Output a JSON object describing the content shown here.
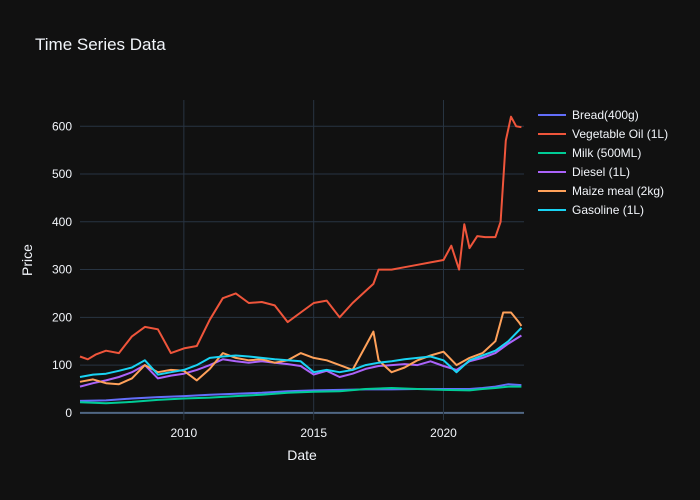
{
  "chart_data": {
    "type": "line",
    "title": "Time Series Data",
    "xlabel": "Date",
    "ylabel": "Price",
    "xlim": [
      2006.0,
      2023.1
    ],
    "ylim": [
      -15,
      655
    ],
    "x_ticks": [
      2010,
      2015,
      2020
    ],
    "x_tick_labels": [
      "2010",
      "2015",
      "2020"
    ],
    "y_ticks": [
      0,
      100,
      200,
      300,
      400,
      500,
      600
    ],
    "y_tick_labels": [
      "0",
      "100",
      "200",
      "300",
      "400",
      "500",
      "600"
    ],
    "grid": true,
    "legend_position": "top-right",
    "background": "#111111",
    "series": [
      {
        "name": "Bread(400g)",
        "color": "#636efa",
        "x": [
          2006.0,
          2007.0,
          2008.0,
          2009.0,
          2010.0,
          2011.0,
          2012.0,
          2013.0,
          2014.0,
          2015.0,
          2016.0,
          2017.0,
          2018.0,
          2019.0,
          2020.0,
          2021.0,
          2021.5,
          2022.0,
          2022.5,
          2023.0
        ],
        "values": [
          25,
          26,
          30,
          33,
          35,
          38,
          40,
          42,
          45,
          47,
          48,
          49,
          49,
          50,
          50,
          50,
          52,
          55,
          60,
          58
        ]
      },
      {
        "name": "Vegetable Oil (1L)",
        "color": "#ef553b",
        "x": [
          2006.0,
          2006.3,
          2006.6,
          2007.0,
          2007.5,
          2008.0,
          2008.5,
          2009.0,
          2009.5,
          2010.0,
          2010.5,
          2011.0,
          2011.5,
          2012.0,
          2012.5,
          2013.0,
          2013.5,
          2014.0,
          2014.5,
          2015.0,
          2015.5,
          2016.0,
          2016.5,
          2017.0,
          2017.3,
          2017.5,
          2018.0,
          2018.5,
          2019.0,
          2019.5,
          2020.0,
          2020.3,
          2020.6,
          2020.8,
          2021.0,
          2021.3,
          2021.6,
          2022.0,
          2022.2,
          2022.4,
          2022.6,
          2022.8,
          2023.0
        ],
        "values": [
          118,
          112,
          122,
          130,
          125,
          160,
          180,
          175,
          125,
          135,
          140,
          195,
          240,
          250,
          230,
          232,
          225,
          190,
          210,
          230,
          235,
          200,
          230,
          255,
          270,
          300,
          300,
          305,
          310,
          315,
          320,
          350,
          300,
          395,
          345,
          370,
          368,
          368,
          400,
          570,
          620,
          600,
          598
        ]
      },
      {
        "name": "Milk (500ML)",
        "color": "#00cc96",
        "x": [
          2006.0,
          2007.0,
          2008.0,
          2009.0,
          2010.0,
          2011.0,
          2012.0,
          2013.0,
          2014.0,
          2015.0,
          2016.0,
          2017.0,
          2018.0,
          2019.0,
          2020.0,
          2021.0,
          2021.5,
          2022.0,
          2022.5,
          2023.0
        ],
        "values": [
          22,
          20,
          23,
          27,
          30,
          32,
          35,
          38,
          42,
          44,
          45,
          50,
          52,
          50,
          48,
          47,
          50,
          52,
          55,
          55
        ]
      },
      {
        "name": "Diesel (1L)",
        "color": "#ab63fa",
        "x": [
          2006.0,
          2006.5,
          2007.0,
          2007.5,
          2008.0,
          2008.5,
          2009.0,
          2009.5,
          2010.0,
          2010.5,
          2011.0,
          2011.5,
          2012.0,
          2012.5,
          2013.0,
          2013.5,
          2014.0,
          2014.5,
          2015.0,
          2015.5,
          2016.0,
          2016.5,
          2017.0,
          2017.5,
          2018.0,
          2018.5,
          2019.0,
          2019.5,
          2020.0,
          2020.5,
          2021.0,
          2021.5,
          2022.0,
          2022.5,
          2023.0
        ],
        "values": [
          55,
          62,
          68,
          75,
          85,
          100,
          72,
          78,
          82,
          90,
          100,
          112,
          108,
          105,
          108,
          105,
          102,
          98,
          80,
          88,
          75,
          82,
          92,
          98,
          100,
          102,
          100,
          108,
          98,
          90,
          108,
          115,
          125,
          145,
          162
        ]
      },
      {
        "name": "Maize meal (2kg)",
        "color": "#ffa15a",
        "x": [
          2006.0,
          2006.5,
          2007.0,
          2007.5,
          2008.0,
          2008.5,
          2009.0,
          2009.5,
          2010.0,
          2010.5,
          2011.0,
          2011.5,
          2012.0,
          2012.5,
          2013.0,
          2013.5,
          2014.0,
          2014.5,
          2015.0,
          2015.5,
          2016.0,
          2016.5,
          2017.0,
          2017.3,
          2017.5,
          2017.8,
          2018.0,
          2018.5,
          2019.0,
          2019.5,
          2020.0,
          2020.5,
          2021.0,
          2021.5,
          2022.0,
          2022.3,
          2022.6,
          2022.9,
          2023.0
        ],
        "values": [
          65,
          70,
          62,
          60,
          72,
          100,
          85,
          90,
          88,
          68,
          92,
          125,
          115,
          110,
          112,
          105,
          110,
          125,
          115,
          110,
          100,
          90,
          140,
          170,
          110,
          95,
          85,
          95,
          110,
          120,
          128,
          100,
          115,
          125,
          150,
          210,
          210,
          190,
          182
        ]
      },
      {
        "name": "Gasoline (1L)",
        "color": "#19d3f3",
        "x": [
          2006.0,
          2006.5,
          2007.0,
          2007.5,
          2008.0,
          2008.5,
          2009.0,
          2009.5,
          2010.0,
          2010.5,
          2011.0,
          2011.5,
          2012.0,
          2012.5,
          2013.0,
          2013.5,
          2014.0,
          2014.5,
          2015.0,
          2015.5,
          2016.0,
          2016.5,
          2017.0,
          2017.5,
          2018.0,
          2018.5,
          2019.0,
          2019.5,
          2020.0,
          2020.5,
          2021.0,
          2021.5,
          2022.0,
          2022.5,
          2023.0
        ],
        "values": [
          75,
          80,
          82,
          88,
          95,
          110,
          80,
          85,
          90,
          100,
          115,
          118,
          120,
          118,
          115,
          112,
          110,
          108,
          85,
          90,
          85,
          90,
          100,
          105,
          108,
          112,
          115,
          118,
          110,
          85,
          110,
          120,
          130,
          150,
          178
        ]
      }
    ]
  }
}
